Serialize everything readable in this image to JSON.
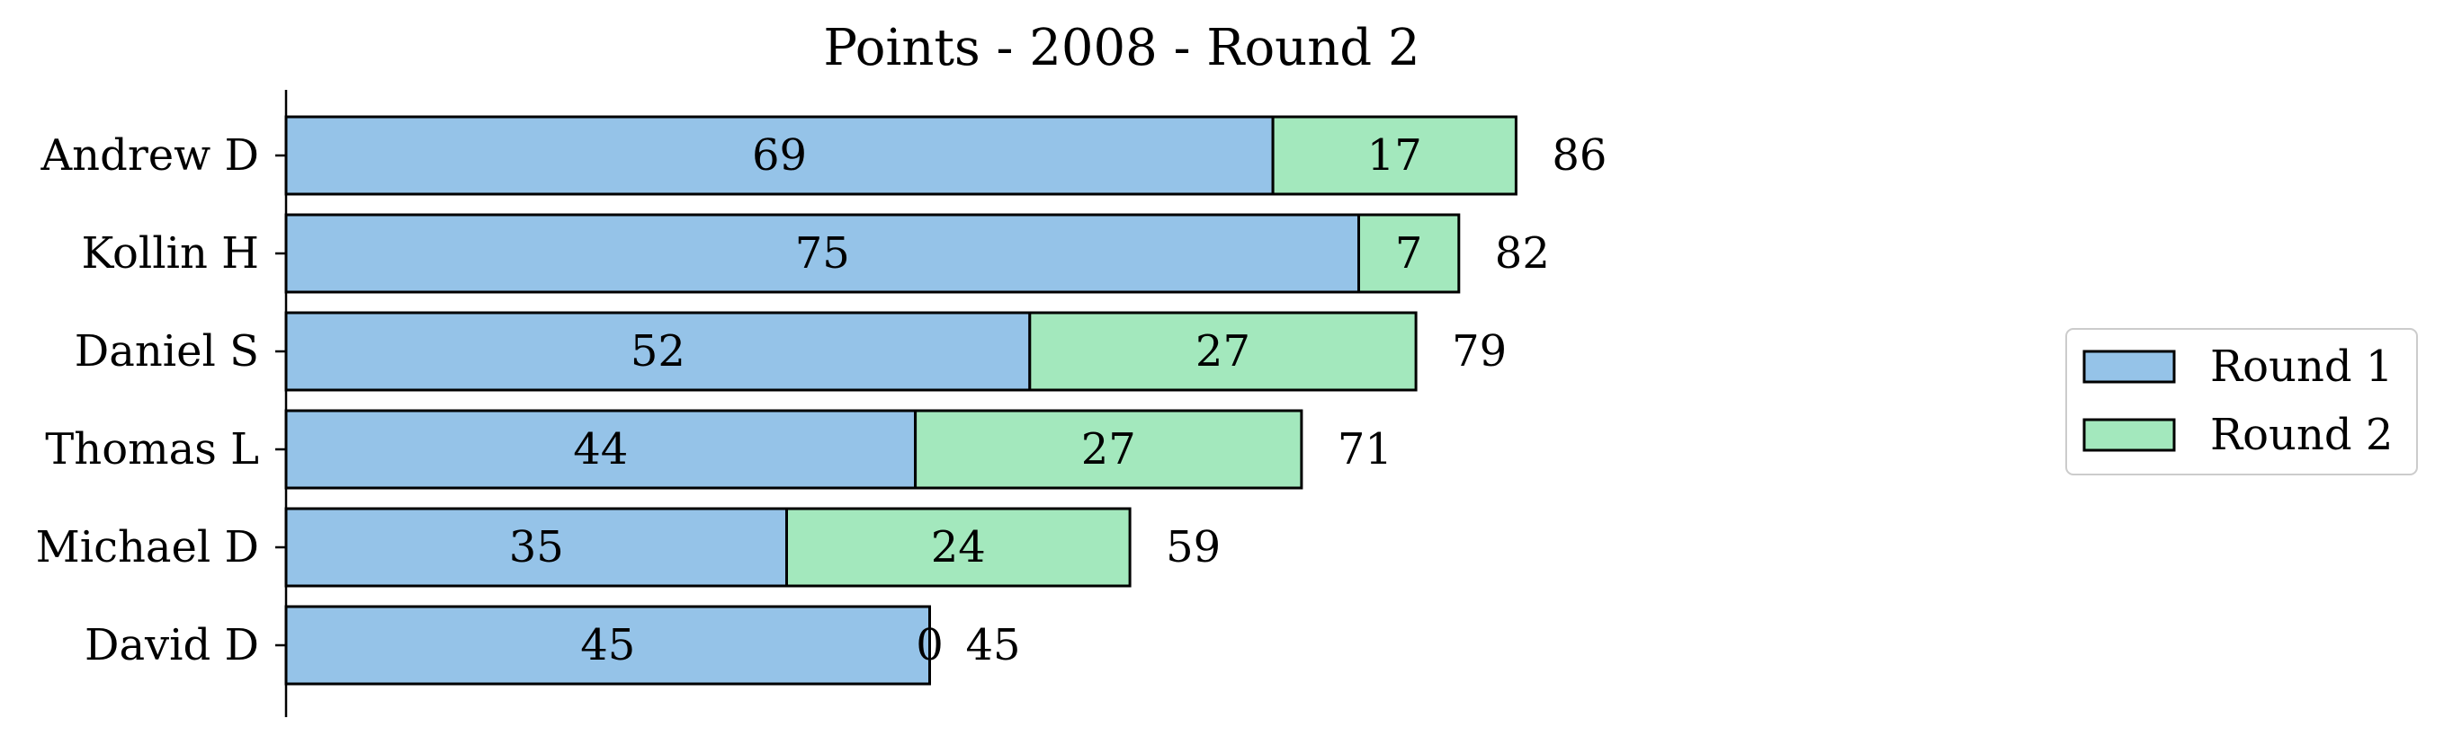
{
  "chart_data": {
    "type": "bar",
    "orientation": "horizontal",
    "stacked": true,
    "title": "Points - 2008 - Round 2",
    "xlabel": "",
    "ylabel": "",
    "categories": [
      "Andrew D",
      "Kollin H",
      "Daniel S",
      "Thomas L",
      "Michael D",
      "David D"
    ],
    "series": [
      {
        "name": "Round 1",
        "values": [
          69,
          75,
          52,
          44,
          35,
          45
        ],
        "color": "#95c3e8"
      },
      {
        "name": "Round 2",
        "values": [
          17,
          7,
          27,
          27,
          24,
          0
        ],
        "color": "#a3e8bd"
      }
    ],
    "totals": [
      86,
      82,
      79,
      71,
      59,
      45
    ],
    "xlim": [
      0,
      95
    ],
    "grid": false,
    "legend": "right"
  }
}
